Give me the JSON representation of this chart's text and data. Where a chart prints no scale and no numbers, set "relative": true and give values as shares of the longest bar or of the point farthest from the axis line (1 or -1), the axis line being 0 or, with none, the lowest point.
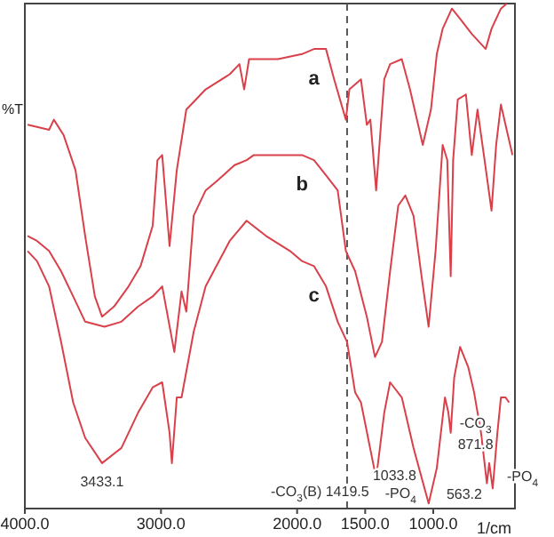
{
  "chart_data": {
    "type": "line",
    "relative": true,
    "xlabel": "1/cm",
    "ylabel": "%T",
    "xlim": [
      4000,
      400
    ],
    "xticks": [
      {
        "value": 4000,
        "label": "4000.0"
      },
      {
        "value": 3000,
        "label": "3000.0"
      },
      {
        "value": 2000,
        "label": "2000.0"
      },
      {
        "value": 1500,
        "label": "1500.0"
      },
      {
        "value": 1000,
        "label": "1000.0"
      }
    ],
    "grid": false,
    "legend": false,
    "series": [
      {
        "name": "a",
        "color": "#d9404a",
        "x": [
          3980,
          3822,
          3787,
          3716,
          3628,
          3557,
          3486,
          3433,
          3345,
          3238,
          3150,
          3061,
          3026,
          2991,
          2937,
          2884,
          2814,
          2672,
          2495,
          2424,
          2389,
          2353,
          2141,
          1964,
          1876,
          1788,
          1728,
          1642,
          1616,
          1531,
          1488,
          1462,
          1419.5,
          1360,
          1317,
          1231,
          1171,
          1077,
          1017,
          974,
          931,
          863,
          803,
          717,
          615,
          572,
          503,
          460
        ],
        "values": [
          0.76,
          0.75,
          0.77,
          0.74,
          0.67,
          0.54,
          0.42,
          0.38,
          0.4,
          0.44,
          0.48,
          0.56,
          0.69,
          0.7,
          0.52,
          0.67,
          0.79,
          0.83,
          0.86,
          0.88,
          0.83,
          0.89,
          0.89,
          0.9,
          0.91,
          0.91,
          0.85,
          0.77,
          0.83,
          0.85,
          0.76,
          0.77,
          0.63,
          0.85,
          0.88,
          0.89,
          0.83,
          0.72,
          0.79,
          0.9,
          0.95,
          0.99,
          0.97,
          0.94,
          0.91,
          0.95,
          0.99,
          1.0
        ]
      },
      {
        "name": "b",
        "color": "#d9404a",
        "x": [
          3980,
          3911,
          3822,
          3734,
          3645,
          3557,
          3415,
          3291,
          3168,
          3061,
          2991,
          2902,
          2849,
          2814,
          2760,
          2672,
          2583,
          2460,
          2371,
          2318,
          2141,
          1964,
          1876,
          1788,
          1702,
          1642,
          1574,
          1488,
          1428,
          1377,
          1317,
          1257,
          1205,
          1145,
          1086,
          1034,
          983,
          931,
          897,
          871.8,
          854,
          820,
          760,
          717,
          675,
          623,
          572,
          538,
          503,
          452,
          418
        ],
        "values": [
          0.54,
          0.53,
          0.51,
          0.47,
          0.42,
          0.37,
          0.36,
          0.37,
          0.4,
          0.42,
          0.44,
          0.31,
          0.43,
          0.39,
          0.58,
          0.63,
          0.65,
          0.68,
          0.69,
          0.7,
          0.7,
          0.7,
          0.69,
          0.66,
          0.63,
          0.51,
          0.47,
          0.38,
          0.3,
          0.33,
          0.47,
          0.6,
          0.62,
          0.58,
          0.46,
          0.36,
          0.51,
          0.72,
          0.69,
          0.46,
          0.69,
          0.81,
          0.82,
          0.7,
          0.79,
          0.69,
          0.59,
          0.72,
          0.8,
          0.74,
          0.7
        ]
      },
      {
        "name": "c",
        "color": "#d9404a",
        "x": [
          3980,
          3911,
          3822,
          3734,
          3645,
          3557,
          3433.1,
          3291,
          3168,
          3061,
          2991,
          2937,
          2920,
          2884,
          2849,
          2760,
          2672,
          2495,
          2371,
          2229,
          2052,
          1964,
          1876,
          1788,
          1702,
          1633,
          1574,
          1531,
          1419.5,
          1360,
          1317,
          1231,
          1145,
          1033.8,
          974,
          914,
          889,
          871.8,
          846,
          803,
          743,
          700,
          649,
          606,
          589,
          563.2,
          529,
          503,
          469,
          443
        ],
        "values": [
          0.51,
          0.49,
          0.44,
          0.33,
          0.21,
          0.14,
          0.09,
          0.12,
          0.19,
          0.24,
          0.25,
          0.15,
          0.09,
          0.22,
          0.22,
          0.35,
          0.44,
          0.53,
          0.57,
          0.54,
          0.51,
          0.49,
          0.48,
          0.44,
          0.37,
          0.33,
          0.23,
          0.21,
          0.06,
          0.19,
          0.25,
          0.22,
          0.12,
          0.01,
          0.08,
          0.22,
          0.19,
          0.15,
          0.26,
          0.32,
          0.28,
          0.23,
          0.15,
          0.05,
          0.09,
          0.04,
          0.15,
          0.22,
          0.22,
          0.21
        ]
      }
    ],
    "ref_lines": [
      {
        "axis": "x",
        "value": 1633,
        "color": "#555555",
        "line_style": "dashed"
      }
    ],
    "annotations": [
      {
        "text": "3433.1",
        "x": 3433.1,
        "y": 0.09
      },
      {
        "text": "-CO$_{3}$(B) 1419.5",
        "x": 1419.5,
        "y": 0.06
      },
      {
        "text": "1033.8",
        "x": 1033.8,
        "y": 0.01
      },
      {
        "text": "-PO$_{4}$",
        "x": 1033.8,
        "y": 0.01
      },
      {
        "text": "-CO$_{3}$",
        "x": 871.8,
        "y": 0.15
      },
      {
        "text": "871.8",
        "x": 871.8,
        "y": 0.15
      },
      {
        "text": "563.2",
        "x": 563.2,
        "y": 0.04
      },
      {
        "text": "-PO$_{4}$",
        "x": 563.2,
        "y": 0.04
      }
    ]
  }
}
